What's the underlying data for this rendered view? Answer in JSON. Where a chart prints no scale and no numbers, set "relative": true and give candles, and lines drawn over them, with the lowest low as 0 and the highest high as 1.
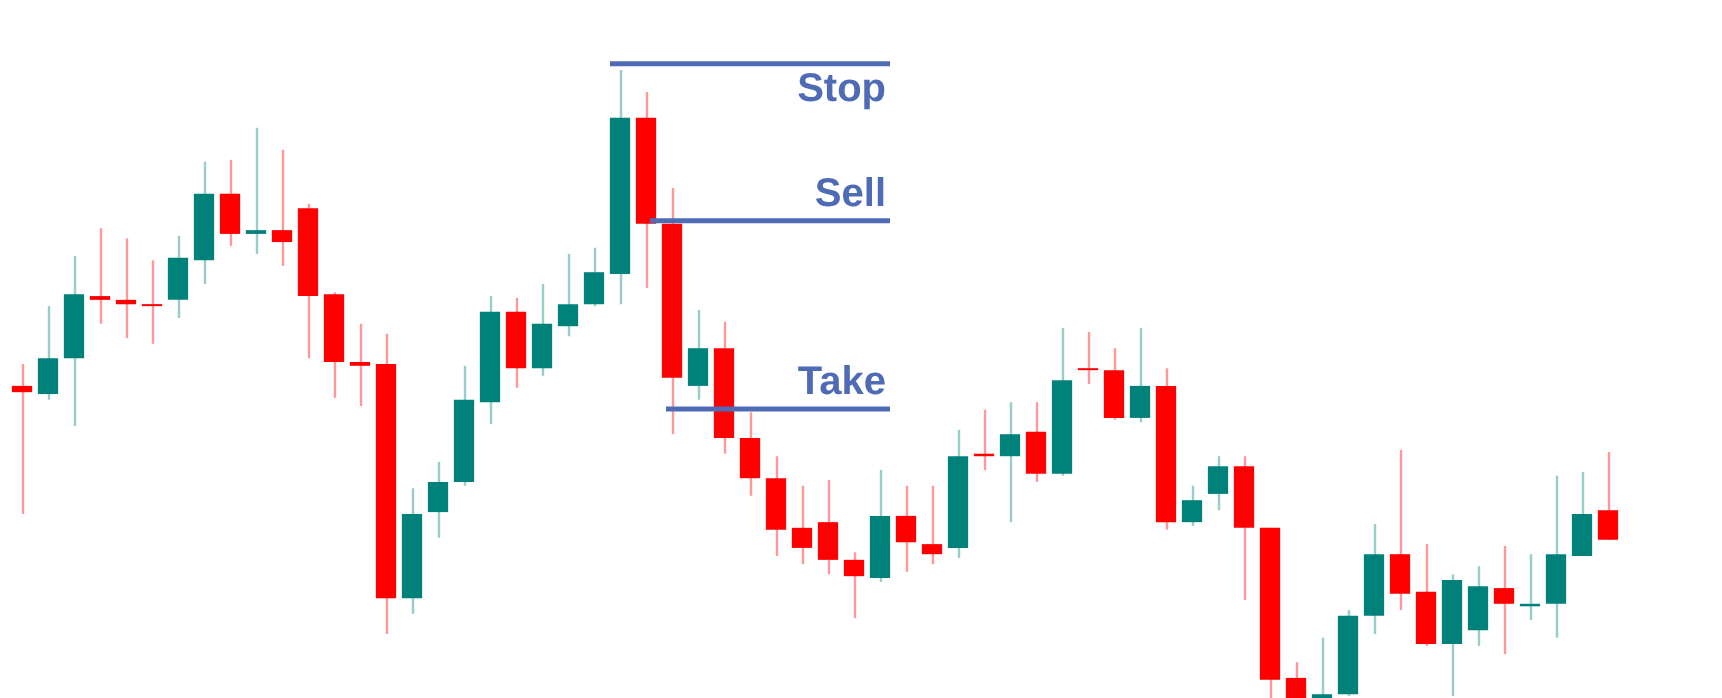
{
  "chart_data": {
    "type": "candlestick",
    "relative": true,
    "categories": [
      null,
      null,
      null,
      null,
      null,
      null,
      null,
      null,
      null,
      null,
      null,
      null,
      null,
      null,
      null,
      null,
      null,
      null,
      null,
      null,
      null,
      null,
      null,
      null,
      null,
      null,
      null,
      null,
      null,
      null,
      null,
      null,
      null,
      null,
      null,
      null,
      null,
      null,
      null,
      null,
      null,
      null,
      null,
      null,
      null,
      null,
      null,
      null,
      null,
      null,
      null,
      null,
      null,
      null,
      null,
      null,
      null,
      null,
      null,
      null,
      null,
      null
    ],
    "ohlc": [
      [
        0.497,
        0.532,
        0.293,
        0.487
      ],
      [
        0.484,
        0.624,
        0.475,
        0.541
      ],
      [
        0.541,
        0.704,
        0.433,
        0.643
      ],
      [
        0.64,
        0.748,
        0.596,
        0.634
      ],
      [
        0.634,
        0.732,
        0.573,
        0.627
      ],
      [
        0.627,
        0.697,
        0.564,
        0.624
      ],
      [
        0.634,
        0.736,
        0.605,
        0.701
      ],
      [
        0.697,
        0.854,
        0.659,
        0.803
      ],
      [
        0.803,
        0.857,
        0.72,
        0.739
      ],
      [
        0.739,
        0.908,
        0.707,
        0.745
      ],
      [
        0.745,
        0.873,
        0.688,
        0.726
      ],
      [
        0.78,
        0.787,
        0.541,
        0.64
      ],
      [
        0.643,
        0.646,
        0.478,
        0.535
      ],
      [
        0.535,
        0.596,
        0.465,
        0.529
      ],
      [
        0.532,
        0.58,
        0.102,
        0.159
      ],
      [
        0.159,
        0.334,
        0.134,
        0.293
      ],
      [
        0.296,
        0.376,
        0.255,
        0.344
      ],
      [
        0.344,
        0.529,
        0.338,
        0.475
      ],
      [
        0.471,
        0.64,
        0.436,
        0.615
      ],
      [
        0.615,
        0.637,
        0.494,
        0.525
      ],
      [
        0.525,
        0.659,
        0.513,
        0.596
      ],
      [
        0.592,
        0.707,
        0.576,
        0.627
      ],
      [
        0.627,
        0.717,
        0.624,
        0.678
      ],
      [
        0.675,
        1.0,
        0.627,
        0.924
      ],
      [
        0.924,
        0.965,
        0.653,
        0.755
      ],
      [
        0.755,
        0.812,
        0.42,
        0.51
      ],
      [
        0.497,
        0.618,
        0.475,
        0.557
      ],
      [
        0.557,
        0.599,
        0.389,
        0.414
      ],
      [
        0.414,
        0.455,
        0.322,
        0.35
      ],
      [
        0.35,
        0.385,
        0.226,
        0.268
      ],
      [
        0.271,
        0.338,
        0.213,
        0.239
      ],
      [
        0.28,
        0.347,
        0.197,
        0.22
      ],
      [
        0.22,
        0.232,
        0.127,
        0.194
      ],
      [
        0.191,
        0.363,
        0.185,
        0.29
      ],
      [
        0.29,
        0.338,
        0.201,
        0.248
      ],
      [
        0.245,
        0.338,
        0.213,
        0.229
      ],
      [
        0.239,
        0.427,
        0.223,
        0.385
      ],
      [
        0.389,
        0.459,
        0.363,
        0.385
      ],
      [
        0.385,
        0.471,
        0.28,
        0.42
      ],
      [
        0.424,
        0.471,
        0.344,
        0.357
      ],
      [
        0.357,
        0.589,
        0.354,
        0.506
      ],
      [
        0.525,
        0.583,
        0.5,
        0.522
      ],
      [
        0.522,
        0.557,
        0.443,
        0.446
      ],
      [
        0.446,
        0.589,
        0.439,
        0.497
      ],
      [
        0.497,
        0.525,
        0.268,
        0.28
      ],
      [
        0.28,
        0.338,
        0.274,
        0.315
      ],
      [
        0.325,
        0.385,
        0.299,
        0.369
      ],
      [
        0.369,
        0.385,
        0.156,
        0.271
      ],
      [
        0.271,
        0.271,
        0,
        0.029
      ],
      [
        0.032,
        0.057,
        0,
        0
      ],
      [
        0,
        0.096,
        0,
        0.006
      ],
      [
        0.006,
        0.14,
        0.003,
        0.131
      ],
      [
        0.131,
        0.277,
        0.102,
        0.229
      ],
      [
        0.229,
        0.395,
        0.14,
        0.166
      ],
      [
        0.169,
        0.245,
        0.083,
        0.086
      ],
      [
        0.086,
        0.197,
        0.003,
        0.188
      ],
      [
        0.108,
        0.21,
        0.083,
        0.178
      ],
      [
        0.175,
        0.242,
        0.07,
        0.15
      ],
      [
        0.146,
        0.229,
        0.124,
        0.15
      ],
      [
        0.15,
        0.354,
        0.096,
        0.229
      ],
      [
        0.226,
        0.36,
        0.226,
        0.293
      ],
      [
        0.299,
        0.392,
        0.252,
        0.252
      ]
    ],
    "colors": [
      "#ff0000",
      "#00817a",
      "#00817a",
      "#ff0000",
      "#ff0000",
      "#ff0000",
      "#00817a",
      "#00817a",
      "#ff0000",
      "#00817a",
      "#ff0000",
      "#ff0000",
      "#ff0000",
      "#ff0000",
      "#ff0000",
      "#00817a",
      "#00817a",
      "#00817a",
      "#00817a",
      "#ff0000",
      "#00817a",
      "#00817a",
      "#00817a",
      "#00817a",
      "#ff0000",
      "#ff0000",
      "#00817a",
      "#ff0000",
      "#ff0000",
      "#ff0000",
      "#ff0000",
      "#ff0000",
      "#ff0000",
      "#00817a",
      "#ff0000",
      "#ff0000",
      "#00817a",
      "#ff0000",
      "#00817a",
      "#ff0000",
      "#00817a",
      "#ff0000",
      "#ff0000",
      "#00817a",
      "#ff0000",
      "#00817a",
      "#00817a",
      "#ff0000",
      "#ff0000",
      "#ff0000",
      "#00817a",
      "#00817a",
      "#00817a",
      "#ff0000",
      "#ff0000",
      "#00817a",
      "#00817a",
      "#ff0000",
      "#00817a",
      "#00817a",
      "#00817a",
      "#ff0000"
    ],
    "ref_lines": [
      {
        "axis": "y",
        "value": 1.01,
        "label": "Stop",
        "color": "#4f6bb5"
      },
      {
        "axis": "y",
        "value": 0.76,
        "label": "Sell",
        "color": "#4f6bb5"
      },
      {
        "axis": "y",
        "value": 0.46,
        "label": "Take",
        "color": "#4f6bb5"
      }
    ],
    "legend": false
  }
}
